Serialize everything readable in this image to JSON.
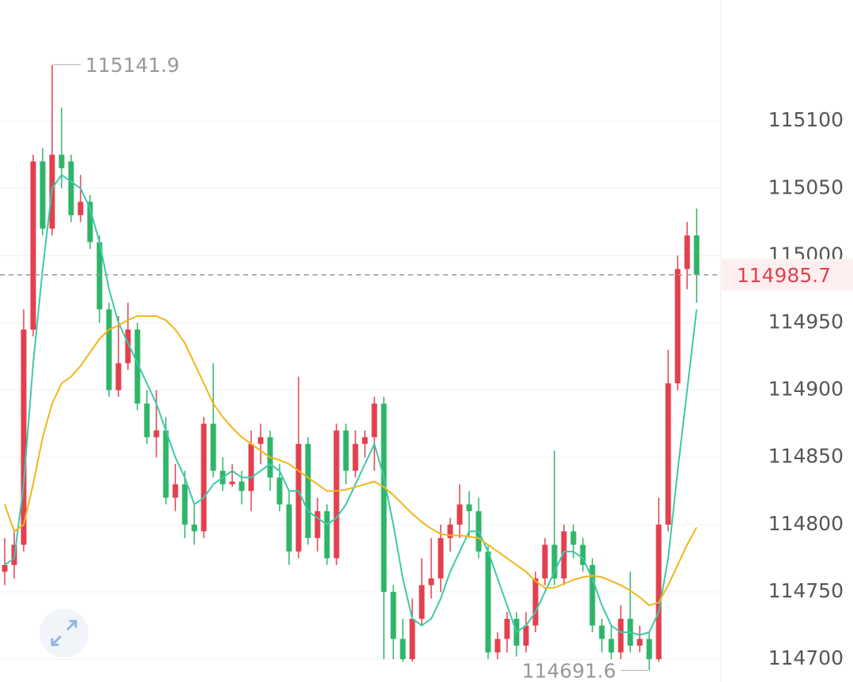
{
  "chart_data": {
    "type": "candlestick",
    "ylim": [
      114683,
      115190
    ],
    "yticks": [
      114700,
      114750,
      114800,
      114850,
      114900,
      114950,
      115000,
      115050,
      115100
    ],
    "grid": true,
    "up_color": "#e3404e",
    "down_color": "#2fb569",
    "open": [
      114765,
      114770,
      114785,
      114945,
      115070,
      115020,
      115075,
      115070,
      115030,
      115040,
      115010,
      114960,
      114900,
      114920,
      114945,
      114890,
      114865,
      114870,
      114820,
      114830,
      114800,
      114795,
      114875,
      114840,
      114830,
      114832,
      114825,
      114860,
      114865,
      114835,
      114815,
      114780,
      114860,
      114790,
      114810,
      114775,
      114870,
      114840,
      114860,
      114865,
      114890,
      114750,
      114715,
      114700,
      114730,
      114755,
      114760,
      114790,
      114800,
      114815,
      114810,
      114780,
      114705,
      114715,
      114730,
      114710,
      114725,
      114760,
      114785,
      114760,
      114795,
      114785,
      114770,
      114725,
      114715,
      114705,
      114730,
      114710,
      114715,
      114700,
      114800,
      114905,
      114990,
      115015
    ],
    "high": [
      114790,
      114795,
      114960,
      115075,
      115080,
      115141.9,
      115110,
      115075,
      115060,
      115045,
      115015,
      114965,
      114955,
      114965,
      114950,
      114900,
      114900,
      114880,
      114845,
      114840,
      114815,
      114880,
      114920,
      114850,
      114845,
      114840,
      114870,
      114875,
      114870,
      114845,
      114825,
      114910,
      114865,
      114820,
      114815,
      114875,
      114875,
      114870,
      114870,
      114895,
      114895,
      114755,
      114730,
      114745,
      114775,
      114790,
      114800,
      114805,
      114830,
      114825,
      114820,
      114785,
      114720,
      114735,
      114735,
      114735,
      114765,
      114790,
      114855,
      114800,
      114800,
      114790,
      114775,
      114730,
      114725,
      114740,
      114765,
      114725,
      114720,
      114820,
      114930,
      115000,
      115025,
      115035
    ],
    "low": [
      114755,
      114760,
      114780,
      114940,
      115015,
      115015,
      115050,
      115025,
      115025,
      115005,
      114950,
      114895,
      114895,
      114915,
      114885,
      114860,
      114850,
      114815,
      114810,
      114790,
      114785,
      114790,
      114835,
      114825,
      114828,
      114815,
      114810,
      114845,
      114825,
      114810,
      114770,
      114775,
      114785,
      114780,
      114770,
      114770,
      114830,
      114835,
      114850,
      114840,
      114700,
      114700,
      114698,
      114698,
      114725,
      114745,
      114750,
      114780,
      114790,
      114790,
      114775,
      114700,
      114700,
      114705,
      114702,
      114705,
      114720,
      114755,
      114755,
      114755,
      114775,
      114765,
      114720,
      114705,
      114700,
      114700,
      114705,
      114705,
      114691.6,
      114698,
      114795,
      114900,
      114975,
      114965
    ],
    "close": [
      114770,
      114785,
      114945,
      115070,
      115020,
      115075,
      115065,
      115030,
      115040,
      115010,
      114960,
      114900,
      114920,
      114945,
      114890,
      114865,
      114870,
      114820,
      114830,
      114800,
      114795,
      114875,
      114840,
      114830,
      114832,
      114825,
      114860,
      114865,
      114835,
      114815,
      114780,
      114860,
      114790,
      114810,
      114775,
      114870,
      114840,
      114860,
      114865,
      114890,
      114750,
      114715,
      114700,
      114730,
      114755,
      114760,
      114790,
      114800,
      114815,
      114810,
      114780,
      114705,
      114715,
      114730,
      114710,
      114725,
      114760,
      114785,
      114760,
      114795,
      114785,
      114770,
      114725,
      114715,
      114705,
      114730,
      114710,
      114715,
      114700,
      114800,
      114905,
      114990,
      115015,
      114985.7
    ],
    "ma": [
      {
        "color": "#3ec9a7",
        "values": [
          114770,
          114775,
          114830,
          114920,
          114990,
          115050,
          115060,
          115055,
          115050,
          115035,
          115010,
          114975,
          114950,
          114935,
          114920,
          114905,
          114890,
          114870,
          114850,
          114835,
          114815,
          114820,
          114830,
          114835,
          114840,
          114835,
          114835,
          114840,
          114845,
          114840,
          114825,
          114825,
          114810,
          114805,
          114800,
          114805,
          114815,
          114830,
          114845,
          114860,
          114835,
          114800,
          114760,
          114730,
          114725,
          114730,
          114745,
          114765,
          114780,
          114795,
          114795,
          114780,
          114760,
          114740,
          114720,
          114725,
          114735,
          114750,
          114765,
          114780,
          114780,
          114775,
          114760,
          114740,
          114725,
          114720,
          114720,
          114718,
          114720,
          114735,
          114775,
          114840,
          114900,
          114960
        ]
      },
      {
        "color": "#f0b619",
        "values": [
          114815,
          114795,
          114800,
          114830,
          114865,
          114890,
          114905,
          114910,
          114918,
          114928,
          114938,
          114945,
          114948,
          114952,
          114955,
          114955,
          114955,
          114952,
          114945,
          114935,
          114920,
          114905,
          114890,
          114880,
          114872,
          114865,
          114860,
          114855,
          114850,
          114848,
          114845,
          114840,
          114835,
          114830,
          114825,
          114825,
          114826,
          114828,
          114830,
          114832,
          114828,
          114822,
          114815,
          114808,
          114802,
          114797,
          114793,
          114792,
          114792,
          114791,
          114790,
          114785,
          114780,
          114775,
          114770,
          114765,
          114758,
          114753,
          114753,
          114756,
          114759,
          114761,
          114762,
          114761,
          114758,
          114755,
          114751,
          114746,
          114740,
          114742,
          114755,
          114770,
          114785,
          114798
        ]
      }
    ]
  }
}
